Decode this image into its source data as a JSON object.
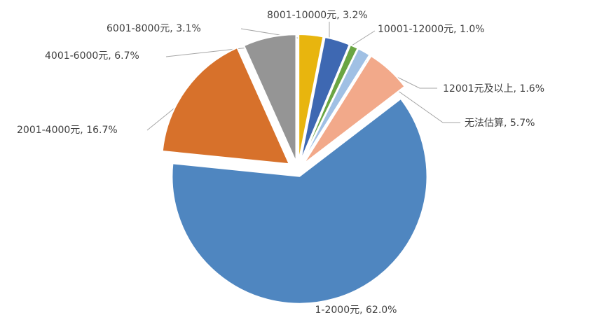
{
  "chart_data": {
    "type": "pie",
    "title": "",
    "categories": [
      "1-2000元",
      "2001-4000元",
      "4001-6000元",
      "6001-8000元",
      "8001-10000元",
      "10001-12000元",
      "12001元及以上",
      "无法估算"
    ],
    "values": [
      62.0,
      16.7,
      6.7,
      3.1,
      3.2,
      1.0,
      1.6,
      5.7
    ],
    "labels": [
      "1-2000元, 62.0%",
      "2001-4000元, 16.7%",
      "4001-6000元, 6.7%",
      "6001-8000元, 3.1%",
      "8001-10000元, 3.2%",
      "10001-12000元, 1.0%",
      "12001元及以上, 1.6%",
      "无法估算, 5.7%"
    ],
    "colors": [
      "#4f86c0",
      "#d7712b",
      "#959595",
      "#e8b50e",
      "#3e68b2",
      "#6aa543",
      "#a0c0e4",
      "#f2a98a"
    ],
    "legend": "none",
    "data_labels": "outside with leader lines"
  }
}
